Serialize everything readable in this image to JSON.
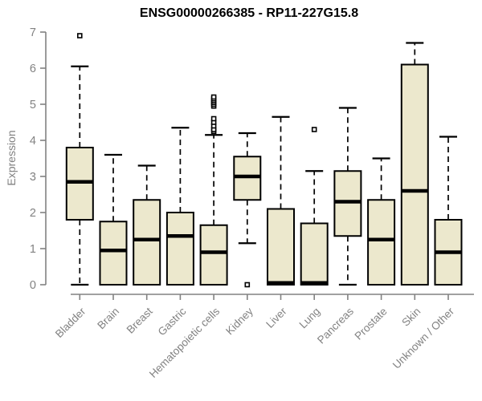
{
  "chart_data": {
    "type": "boxplot",
    "title": "ENSG00000266385 - RP11-227G15.8",
    "ylabel": "Expression",
    "xlabel": "",
    "ylim": [
      0,
      7
    ],
    "yticks": [
      0,
      1,
      2,
      3,
      4,
      5,
      6,
      7
    ],
    "grid": false,
    "legend": "none",
    "categories": [
      "Bladder",
      "Brain",
      "Breast",
      "Gastric",
      "Hematopoietic cells",
      "Kidney",
      "Liver",
      "Lung",
      "Pancreas",
      "Prostate",
      "Skin",
      "Unknown / Other"
    ],
    "series": [
      {
        "category": "Bladder",
        "slug": "bladder",
        "whisker_low": 0,
        "q1": 1.8,
        "median": 2.85,
        "q3": 3.8,
        "whisker_high": 6.05,
        "outliers": [
          6.9
        ]
      },
      {
        "category": "Brain",
        "slug": "brain",
        "whisker_low": 0,
        "q1": 0,
        "median": 0.95,
        "q3": 1.75,
        "whisker_high": 3.6,
        "outliers": []
      },
      {
        "category": "Breast",
        "slug": "breast",
        "whisker_low": 0,
        "q1": 0,
        "median": 1.25,
        "q3": 2.35,
        "whisker_high": 3.3,
        "outliers": []
      },
      {
        "category": "Gastric",
        "slug": "gastric",
        "whisker_low": 0,
        "q1": 0,
        "median": 1.35,
        "q3": 2.0,
        "whisker_high": 4.35,
        "outliers": []
      },
      {
        "category": "Hematopoietic cells",
        "slug": "hematopoietic-cells",
        "whisker_low": 0,
        "q1": 0,
        "median": 0.9,
        "q3": 1.65,
        "whisker_high": 4.15,
        "outliers": [
          4.25,
          4.3,
          4.4,
          4.5,
          4.6,
          4.95,
          5.0,
          5.05,
          5.1,
          5.15,
          5.2
        ]
      },
      {
        "category": "Kidney",
        "slug": "kidney",
        "whisker_low": 1.15,
        "q1": 2.35,
        "median": 3.0,
        "q3": 3.55,
        "whisker_high": 4.2,
        "outliers": [
          0
        ]
      },
      {
        "category": "Liver",
        "slug": "liver",
        "whisker_low": 0,
        "q1": 0,
        "median": 0.05,
        "q3": 2.1,
        "whisker_high": 4.65,
        "outliers": []
      },
      {
        "category": "Lung",
        "slug": "lung",
        "whisker_low": 0,
        "q1": 0,
        "median": 0.05,
        "q3": 1.7,
        "whisker_high": 3.15,
        "outliers": [
          4.3
        ]
      },
      {
        "category": "Pancreas",
        "slug": "pancreas",
        "whisker_low": 0,
        "q1": 1.35,
        "median": 2.3,
        "q3": 3.15,
        "whisker_high": 4.9,
        "outliers": []
      },
      {
        "category": "Prostate",
        "slug": "prostate",
        "whisker_low": 0,
        "q1": 0,
        "median": 1.25,
        "q3": 2.35,
        "whisker_high": 3.5,
        "outliers": []
      },
      {
        "category": "Skin",
        "slug": "skin",
        "whisker_low": 0,
        "q1": 0,
        "median": 2.6,
        "q3": 6.1,
        "whisker_high": 6.7,
        "outliers": []
      },
      {
        "category": "Unknown / Other",
        "slug": "unknown-other",
        "whisker_low": 0,
        "q1": 0,
        "median": 0.9,
        "q3": 1.8,
        "whisker_high": 4.1,
        "outliers": []
      }
    ],
    "colors": {
      "box_fill": "#ece8cd",
      "box_stroke": "#000000",
      "median": "#000000",
      "whisker": "#000000",
      "axis": "#828282",
      "axis_text": "#828282",
      "title": "#000000",
      "background": "#ffffff"
    }
  }
}
